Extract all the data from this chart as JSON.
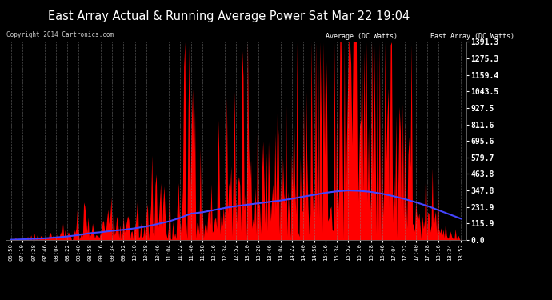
{
  "title": "East Array Actual & Running Average Power Sat Mar 22 19:04",
  "copyright": "Copyright 2014 Cartronics.com",
  "legend_avg": "Average (DC Watts)",
  "legend_east": "East Array (DC Watts)",
  "bg_color": "#000000",
  "plot_bg_color": "#000000",
  "grid_color": "#888888",
  "red_color": "#ff0000",
  "blue_color": "#4444ff",
  "title_color": "#ffffff",
  "ytick_color": "#ffffff",
  "xtick_color": "#ffffff",
  "y_max": 1391.3,
  "y_min": 0.0,
  "y_ticks": [
    0.0,
    115.9,
    231.9,
    347.8,
    463.8,
    579.7,
    695.6,
    811.6,
    927.5,
    1043.5,
    1159.4,
    1275.3,
    1391.3
  ],
  "x_labels": [
    "06:50",
    "07:10",
    "07:28",
    "07:46",
    "08:04",
    "08:22",
    "08:40",
    "08:58",
    "09:16",
    "09:34",
    "09:52",
    "10:10",
    "10:28",
    "10:46",
    "11:04",
    "11:22",
    "11:40",
    "11:58",
    "12:16",
    "12:34",
    "12:52",
    "13:10",
    "13:28",
    "13:46",
    "14:04",
    "14:22",
    "14:40",
    "14:58",
    "15:16",
    "15:34",
    "15:52",
    "16:10",
    "16:28",
    "16:46",
    "17:04",
    "17:22",
    "17:40",
    "17:58",
    "18:16",
    "18:34",
    "18:52"
  ],
  "east_values": [
    2,
    8,
    15,
    25,
    40,
    55,
    70,
    90,
    80,
    110,
    95,
    105,
    120,
    200,
    250,
    350,
    580,
    200,
    320,
    400,
    350,
    380,
    420,
    390,
    410,
    430,
    450,
    800,
    1391,
    1300,
    1350,
    1200,
    1250,
    900,
    700,
    500,
    350,
    200,
    80,
    30,
    10
  ],
  "avg_values": [
    2,
    5,
    8,
    12,
    18,
    25,
    35,
    48,
    55,
    65,
    72,
    82,
    95,
    112,
    130,
    155,
    185,
    195,
    210,
    225,
    238,
    248,
    258,
    268,
    278,
    290,
    305,
    318,
    332,
    342,
    348,
    345,
    338,
    325,
    308,
    288,
    265,
    240,
    210,
    180,
    150
  ]
}
